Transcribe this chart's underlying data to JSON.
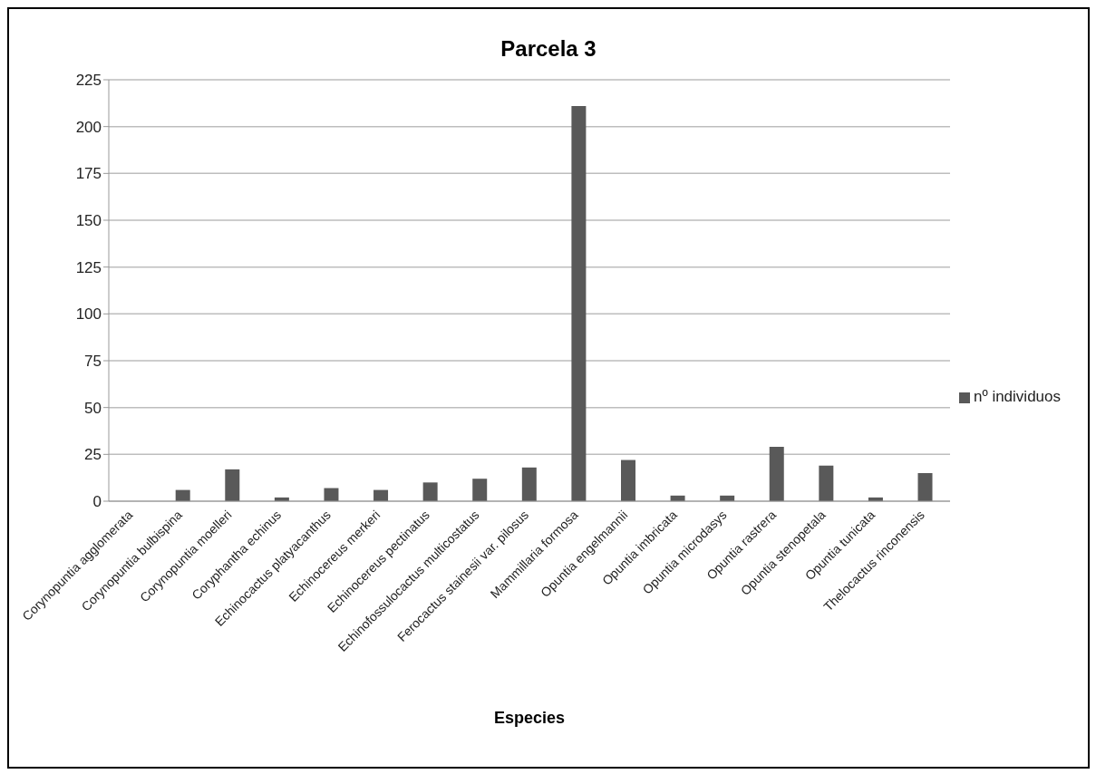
{
  "chart_data": {
    "type": "bar",
    "title": "Parcela 3",
    "xlabel": "Especies",
    "categories": [
      "Corynopuntia agglomerata",
      "Corynopuntia bulbispina",
      "Corynopuntia moelleri",
      "Coryphantha echinus",
      "Echinocactus platyacanthus",
      "Echinocereus merkeri",
      "Echinocereus pectinatus",
      "Echinofossulocactus multicostatus",
      "Ferocactus stainesii var. pilosus",
      "Mammillaria formosa",
      "Opuntia engelmannii",
      "Opuntia imbricata",
      "Opuntia microdasys",
      "Opuntia rastrera",
      "Opuntia stenopetala",
      "Opuntia tunicata",
      "Thelocactus rinconensis"
    ],
    "series": [
      {
        "name": "nº individuos",
        "color": "#595959",
        "values": [
          0,
          6,
          17,
          2,
          7,
          6,
          10,
          12,
          18,
          211,
          22,
          3,
          3,
          29,
          19,
          2,
          15
        ]
      }
    ],
    "ylim": [
      0,
      225
    ],
    "yticks": [
      0,
      25,
      50,
      75,
      100,
      125,
      150,
      175,
      200,
      225
    ],
    "grid": "y",
    "legend": "right"
  }
}
